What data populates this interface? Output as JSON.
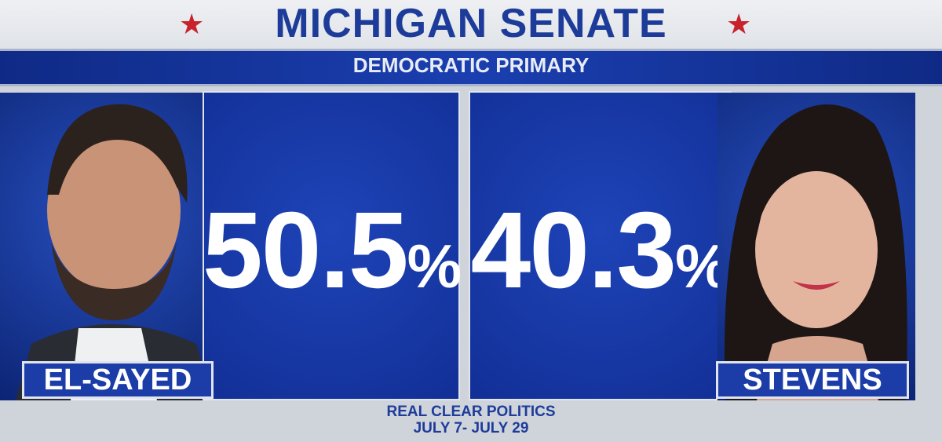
{
  "header": {
    "title": "MICHIGAN SENATE",
    "subtitle": "DEMOCRATIC PRIMARY"
  },
  "candidates": [
    {
      "name": "EL-SAYED",
      "value": 50.5,
      "unit": "%"
    },
    {
      "name": "STEVENS",
      "value": 40.3,
      "unit": "%"
    }
  ],
  "source": {
    "line1": "REAL CLEAR POLITICS",
    "line2": "JULY 7- JULY 29"
  }
}
